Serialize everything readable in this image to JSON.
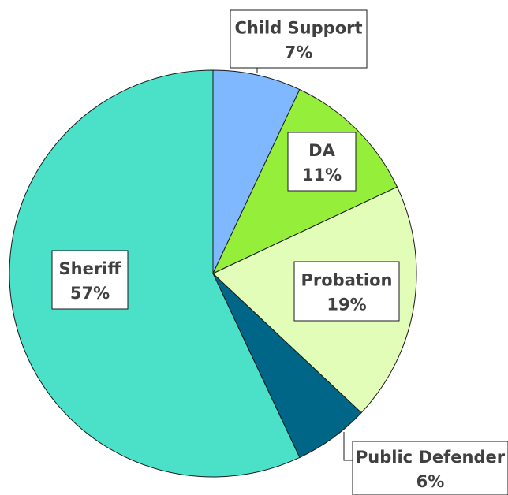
{
  "chart_data": {
    "type": "pie",
    "title": "",
    "start_angle_deg": 0,
    "direction": "clockwise",
    "slices": [
      {
        "name": "Child Support",
        "value": 7,
        "label": "7%",
        "color": "#7fb8ff"
      },
      {
        "name": "DA",
        "value": 11,
        "label": "11%",
        "color": "#94ee3a"
      },
      {
        "name": "Probation",
        "value": 19,
        "label": "19%",
        "color": "#e2fdb8"
      },
      {
        "name": "Public Defender",
        "value": 6,
        "label": "6%",
        "color": "#006688"
      },
      {
        "name": "Sheriff",
        "value": 57,
        "label": "57%",
        "color": "#4be0c8"
      }
    ],
    "legend": "none",
    "border_color": "#1a1a1a"
  }
}
